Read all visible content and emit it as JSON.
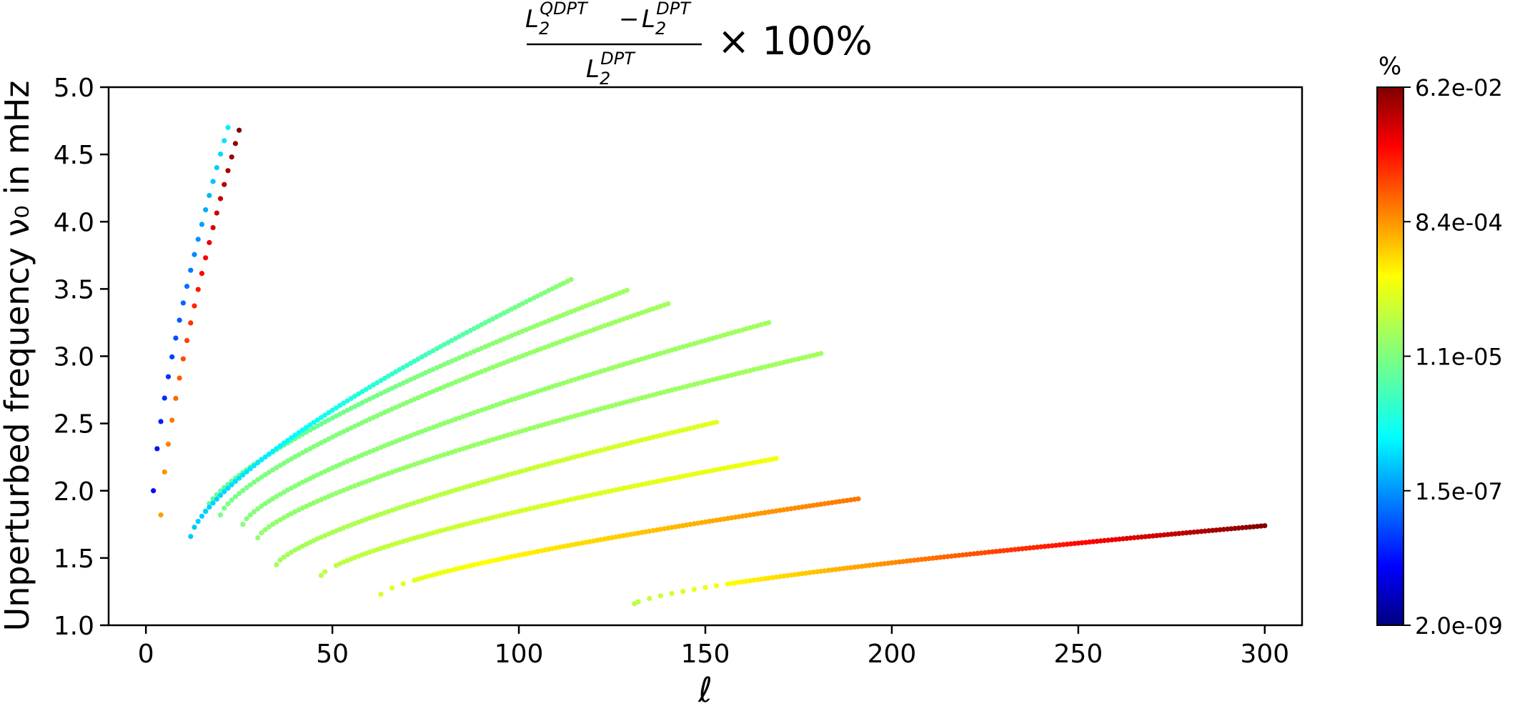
{
  "chart_data": {
    "type": "scatter",
    "title": {
      "numerator_a_base": "L",
      "numerator_a_sub": "2",
      "numerator_a_sup": "QDPT",
      "numerator_minus": "−",
      "numerator_b_base": "L",
      "numerator_b_sub": "2",
      "numerator_b_sup": "DPT",
      "denominator_base": "L",
      "denominator_sub": "2",
      "denominator_sup": "DPT",
      "suffix": "× 100%"
    },
    "xlabel": "ℓ",
    "ylabel": "Unperturbed frequency ν₀ in mHz",
    "xlim": [
      -10,
      310
    ],
    "ylim": [
      1.0,
      5.0
    ],
    "xticks": [
      0,
      50,
      100,
      150,
      200,
      250,
      300
    ],
    "xtick_labels": [
      "0",
      "50",
      "100",
      "150",
      "200",
      "250",
      "300"
    ],
    "yticks": [
      1.0,
      1.5,
      2.0,
      2.5,
      3.0,
      3.5,
      4.0,
      4.5,
      5.0
    ],
    "ytick_labels": [
      "1.0",
      "1.5",
      "2.0",
      "2.5",
      "3.0",
      "3.5",
      "4.0",
      "4.5",
      "5.0"
    ],
    "colorbar": {
      "label": "%",
      "scale": "log",
      "colormap": "jet",
      "range": [
        2e-09,
        0.062
      ],
      "tick_labels": [
        "6.2e-02",
        "8.4e-04",
        "1.1e-05",
        "1.5e-07",
        "2.0e-09"
      ]
    },
    "series": [
      {
        "l_start": 131,
        "l_end": 300,
        "nu_start": 1.16,
        "nu_end": 1.74,
        "value_start": 3e-05,
        "value_end": 0.06,
        "gap_until": 157
      },
      {
        "l_start": 63,
        "l_end": 191,
        "nu_start": 1.23,
        "nu_end": 1.94,
        "value_start": 5e-05,
        "value_end": 0.001,
        "gap_until": 72
      },
      {
        "l_start": 47,
        "l_end": 169,
        "nu_start": 1.37,
        "nu_end": 2.24,
        "value_start": 3e-05,
        "value_end": 8e-05,
        "gap_until": 52
      },
      {
        "l_start": 35,
        "l_end": 153,
        "nu_start": 1.45,
        "nu_end": 2.51,
        "value_start": 2e-05,
        "value_end": 6e-05
      },
      {
        "l_start": 30,
        "l_end": 181,
        "nu_start": 1.65,
        "nu_end": 3.02,
        "value_start": 1.5e-05,
        "value_end": 2e-05
      },
      {
        "l_start": 26,
        "l_end": 167,
        "nu_start": 1.75,
        "nu_end": 3.25,
        "value_start": 1.2e-05,
        "value_end": 2e-05
      },
      {
        "l_start": 20,
        "l_end": 140,
        "nu_start": 1.82,
        "nu_end": 3.39,
        "value_start": 1e-05,
        "value_end": 2e-05
      },
      {
        "l_start": 16,
        "l_end": 129,
        "nu_start": 1.85,
        "nu_end": 3.49,
        "value_start": 6e-06,
        "value_end": 2e-05
      },
      {
        "l_start": 12,
        "l_end": 114,
        "nu_start": 1.66,
        "nu_end": 3.57,
        "value_start": 5e-07,
        "value_end": 1.5e-05
      },
      {
        "l_start": 2,
        "l_end": 22,
        "nu_start": 2.0,
        "nu_end": 4.7,
        "value_start": 2e-08,
        "value_end": 1e-06
      },
      {
        "l_start": 4,
        "l_end": 25,
        "nu_start": 1.82,
        "nu_end": 4.68,
        "value_start": 0.0005,
        "value_end": 0.062
      }
    ]
  }
}
